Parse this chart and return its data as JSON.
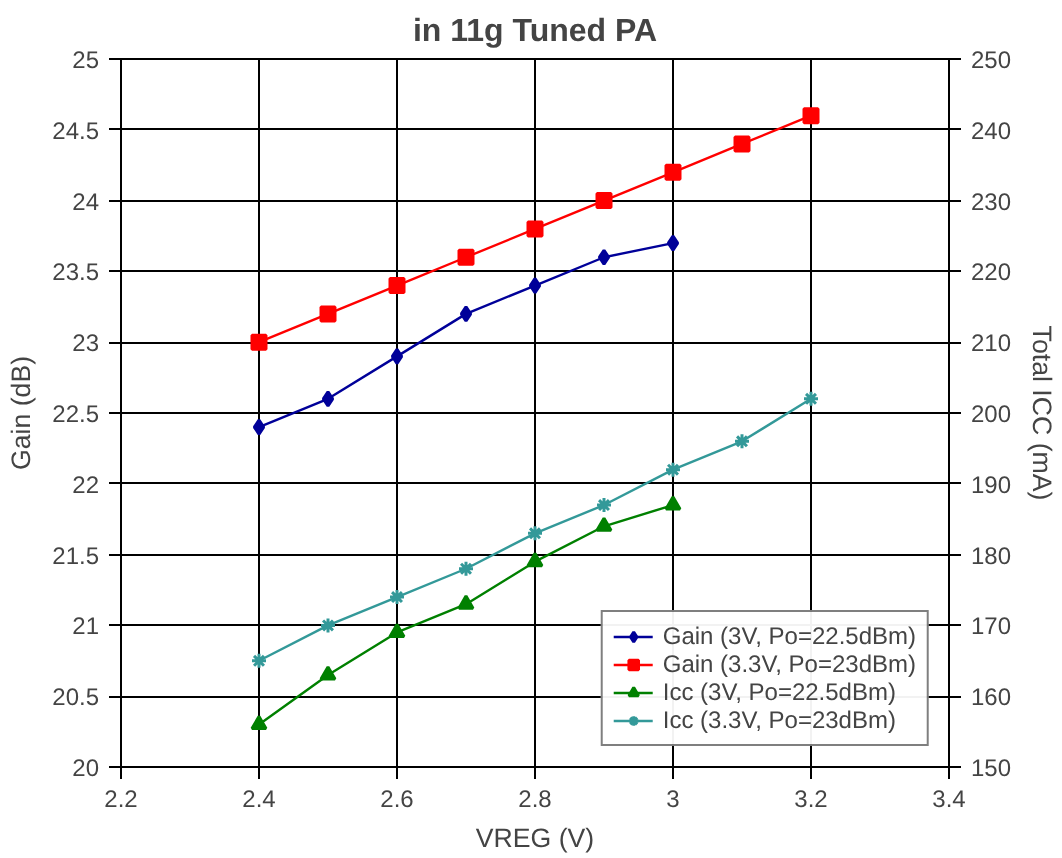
{
  "chart_data": {
    "type": "line",
    "title": "in 11g Tuned PA",
    "xlabel": "VREG (V)",
    "ylabel": "Gain (dB)",
    "y2label": "Total ICC (mA)",
    "xlim": [
      2.2,
      3.4
    ],
    "xticks": [
      2.2,
      2.4,
      2.6,
      2.8,
      3,
      3.2,
      3.4
    ],
    "ylim": [
      20,
      25
    ],
    "yticks": [
      20,
      20.5,
      21,
      21.5,
      22,
      22.5,
      23,
      23.5,
      24,
      24.5,
      25
    ],
    "y2lim": [
      150,
      250
    ],
    "y2ticks": [
      150,
      160,
      170,
      180,
      190,
      200,
      210,
      220,
      230,
      240,
      250
    ],
    "grid": true,
    "legend": "bottom right",
    "series": [
      {
        "name": "Gain (3V, Po=22.5dBm)",
        "color": "#000099",
        "marker": "diamond",
        "x": [
          2.4,
          2.5,
          2.6,
          2.7,
          2.8,
          2.9,
          3.0
        ],
        "values": [
          22.4,
          22.6,
          22.9,
          23.2,
          23.4,
          23.6,
          23.7
        ]
      },
      {
        "name": "Gain (3.3V, Po=23dBm)",
        "color": "#ff0000",
        "marker": "square",
        "x": [
          2.4,
          2.5,
          2.6,
          2.7,
          2.8,
          2.9,
          3.0,
          3.1,
          3.2
        ],
        "values": [
          23.0,
          23.2,
          23.4,
          23.6,
          23.8,
          24.0,
          24.2,
          24.4,
          24.6
        ]
      },
      {
        "name": "Icc (3V, Po=22.5dBm)",
        "color": "#008000",
        "marker": "triangle",
        "axis": "y2",
        "x": [
          2.4,
          2.5,
          2.6,
          2.7,
          2.8,
          2.9,
          3.0
        ],
        "values": [
          156,
          163,
          169,
          173,
          179,
          184,
          187
        ]
      },
      {
        "name": "Icc (3.3V, Po=23dBm)",
        "color": "#339999",
        "marker": "cross",
        "axis": "y2",
        "x": [
          2.4,
          2.5,
          2.6,
          2.7,
          2.8,
          2.9,
          3.0,
          3.1,
          3.2
        ],
        "values": [
          165,
          170,
          174,
          178,
          183,
          187,
          192,
          196,
          202
        ]
      }
    ]
  }
}
